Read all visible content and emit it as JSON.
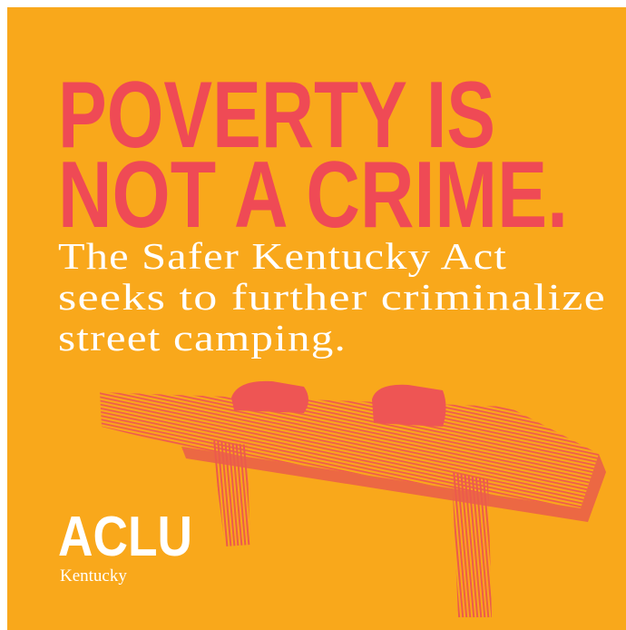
{
  "headline": {
    "lines": [
      "POVERTY IS",
      "NOT A CRIME."
    ]
  },
  "subtext": {
    "lines": [
      "The Safer Kentucky Act",
      "seeks to further criminalize",
      "street camping."
    ]
  },
  "logo": {
    "name": "ACLU",
    "region": "Kentucky"
  }
}
